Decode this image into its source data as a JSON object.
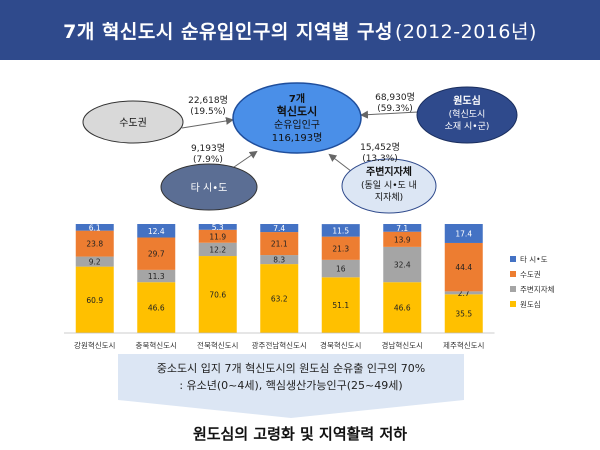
{
  "title": {
    "main": "7개 혁신도시 순유입인구의 지역별 구성",
    "period": "(2012-2016년)"
  },
  "diagram": {
    "center": {
      "line1": "7개",
      "line2": "혁신도시",
      "line3": "순유입인구",
      "line4": "116,193명"
    },
    "sudogwon": {
      "label": "수도권",
      "value": "22,618명",
      "pct": "(19.5%)"
    },
    "wondosim": {
      "label1": "원도심",
      "label2": "(혁신도시",
      "label3": "소재 시•군)",
      "value": "68,930명",
      "pct": "(59.3%)"
    },
    "tasido": {
      "label": "타 시•도",
      "value": "9,193명",
      "pct": "(7.9%)"
    },
    "jubyeon": {
      "label1": "주변지자체",
      "label2": "(동일 시•도 내",
      "label3": "지자체)",
      "value": "15,452명",
      "pct": "(13.3%)"
    }
  },
  "chart_data": {
    "type": "bar",
    "stacked": true,
    "categories": [
      "강원혁신도시",
      "충북혁신도시",
      "전북혁신도시",
      "광주전남혁신도시",
      "경북혁신도시",
      "경남혁신도시",
      "제주혁신도시"
    ],
    "series": [
      {
        "name": "원도심",
        "color": "#FFC000",
        "values": [
          60.9,
          46.6,
          70.6,
          63.2,
          51.1,
          46.6,
          35.5
        ]
      },
      {
        "name": "주변지자체",
        "color": "#A5A5A5",
        "values": [
          9.2,
          11.3,
          12.2,
          8.3,
          16.0,
          32.4,
          2.7
        ]
      },
      {
        "name": "수도권",
        "color": "#ED7D31",
        "values": [
          23.8,
          29.7,
          11.9,
          21.1,
          21.3,
          13.9,
          44.4
        ]
      },
      {
        "name": "타 시•도",
        "color": "#4472C4",
        "values": [
          6.1,
          12.4,
          5.3,
          7.4,
          11.5,
          7.1,
          17.4
        ]
      }
    ],
    "ylim": [
      0,
      100
    ],
    "legend_position": "right"
  },
  "callout": {
    "line1": "중소도시 입지 7개 혁신도시의 원도심 순유출 인구의 70%",
    "line2": ": 유소년(0~4세), 핵심생산가능인구(25~49세)"
  },
  "conclusion": "원도심의 고령화 및 지역활력 저하"
}
